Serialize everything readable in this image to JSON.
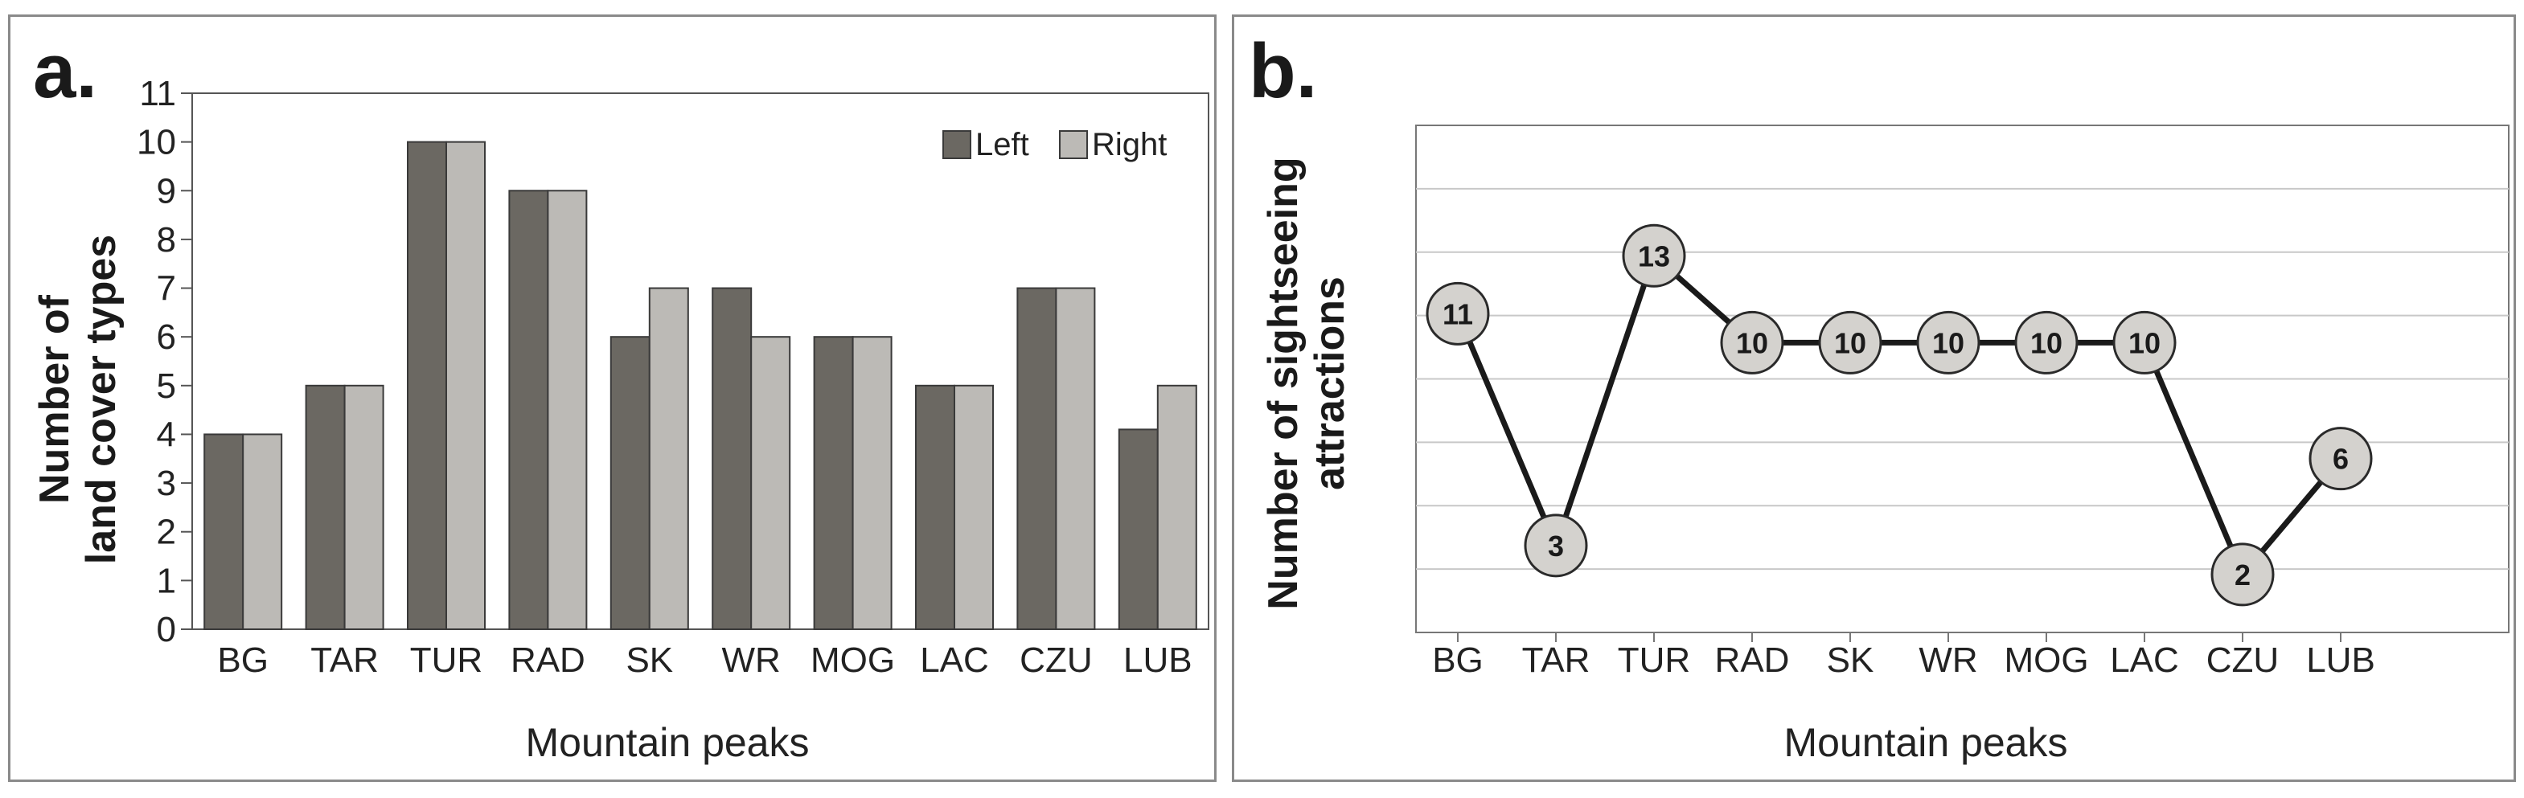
{
  "chart_data": [
    {
      "panel": "a.",
      "type": "bar",
      "title": "",
      "xlabel": "Mountain peaks",
      "ylabel_lines": [
        "Number of",
        "land cover types"
      ],
      "categories": [
        "BG",
        "TAR",
        "TUR",
        "RAD",
        "SK",
        "WR",
        "MOG",
        "LAC",
        "CZU",
        "LUB"
      ],
      "series": [
        {
          "name": "Left",
          "color": "#6b6862",
          "values": [
            4,
            5,
            10,
            9,
            6,
            7,
            6,
            5,
            7,
            4.1
          ]
        },
        {
          "name": "Right",
          "color": "#bcbab6",
          "values": [
            4,
            5,
            10,
            9,
            7,
            6,
            6,
            5,
            7,
            5
          ]
        }
      ],
      "ylim": [
        0,
        11
      ],
      "yticks": [
        "0",
        "1",
        "2",
        "3",
        "4",
        "5",
        "6",
        "7",
        "8",
        "9",
        "10",
        "11"
      ],
      "legend_position": "top-right",
      "grid": false
    },
    {
      "panel": "b.",
      "type": "line",
      "title": "",
      "xlabel": "Mountain peaks",
      "ylabel_lines": [
        "Number of sightseeing",
        "attractions"
      ],
      "categories": [
        "BG",
        "TAR",
        "TUR",
        "RAD",
        "SK",
        "WR",
        "MOG",
        "LAC",
        "CZU",
        "LUB"
      ],
      "values": [
        11,
        3,
        13,
        10,
        10,
        10,
        10,
        10,
        2,
        6
      ],
      "point_labels": [
        "11",
        "3",
        "13",
        "10",
        "10",
        "10",
        "10",
        "10",
        "2",
        "6"
      ],
      "ylim": [
        0,
        17.5
      ],
      "grid": true,
      "line_color": "#1a1a1a",
      "marker_color": "#d4d2ce"
    }
  ]
}
